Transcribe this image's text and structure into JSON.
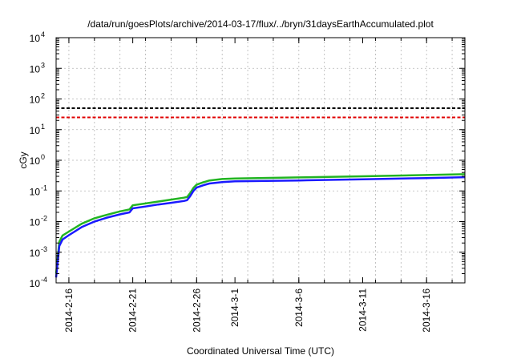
{
  "chart_data": {
    "type": "line",
    "title": "/data/run/goesPlots/archive/2014-03-17/flux/../bryn/31daysEarthAccumulated.plot",
    "xlabel": "Coordinated Universal Time (UTC)",
    "ylabel": "cGy",
    "y_scale": "log",
    "ylim": [
      0.0001,
      10000
    ],
    "xlim": [
      "2014-02-15",
      "2014-03-19"
    ],
    "grid": true,
    "x_ticks": [
      "2014-2-16",
      "2014-2-21",
      "2014-2-26",
      "2014-3-1",
      "2014-3-6",
      "2014-3-11",
      "2014-3-16"
    ],
    "x_tick_dates": [
      "2014-02-16",
      "2014-02-21",
      "2014-02-26",
      "2014-03-01",
      "2014-03-06",
      "2014-03-11",
      "2014-03-16"
    ],
    "y_ticks": [
      {
        "value": 0.0001,
        "base": "10",
        "exp": "-4"
      },
      {
        "value": 0.001,
        "base": "10",
        "exp": "-3"
      },
      {
        "value": 0.01,
        "base": "10",
        "exp": "-2"
      },
      {
        "value": 0.1,
        "base": "10",
        "exp": "-1"
      },
      {
        "value": 1,
        "base": "10",
        "exp": "0"
      },
      {
        "value": 10,
        "base": "10",
        "exp": "1"
      },
      {
        "value": 100,
        "base": "10",
        "exp": "2"
      },
      {
        "value": 1000,
        "base": "10",
        "exp": "3"
      },
      {
        "value": 10000,
        "base": "10",
        "exp": "4"
      }
    ],
    "reference_lines": [
      {
        "value": 50,
        "color": "#000000",
        "style": "dashed"
      },
      {
        "value": 25,
        "color": "#e00000",
        "style": "dashed"
      }
    ],
    "series": [
      {
        "color": "#22b422",
        "x": [
          "2014-02-15",
          "2014-02-15T06:00",
          "2014-02-15T12:00",
          "2014-02-16",
          "2014-02-17",
          "2014-02-18",
          "2014-02-19",
          "2014-02-20",
          "2014-02-20T18:00",
          "2014-02-21",
          "2014-02-22",
          "2014-02-23",
          "2014-02-24",
          "2014-02-25",
          "2014-02-25T06:00",
          "2014-02-25T12:00",
          "2014-02-25T18:00",
          "2014-02-26",
          "2014-02-26T12:00",
          "2014-02-27",
          "2014-02-28",
          "2014-03-01",
          "2014-03-06",
          "2014-03-11",
          "2014-03-16",
          "2014-03-19"
        ],
        "values": [
          0.0002,
          0.0022,
          0.0035,
          0.0047,
          0.0085,
          0.0128,
          0.0168,
          0.0215,
          0.025,
          0.034,
          0.039,
          0.045,
          0.052,
          0.06,
          0.063,
          0.085,
          0.125,
          0.16,
          0.19,
          0.22,
          0.245,
          0.255,
          0.275,
          0.3,
          0.33,
          0.35
        ]
      },
      {
        "color": "#1a1aff",
        "x": [
          "2014-02-15",
          "2014-02-15T06:00",
          "2014-02-15T12:00",
          "2014-02-16",
          "2014-02-17",
          "2014-02-18",
          "2014-02-19",
          "2014-02-20",
          "2014-02-20T18:00",
          "2014-02-21",
          "2014-02-22",
          "2014-02-23",
          "2014-02-24",
          "2014-02-25",
          "2014-02-25T06:00",
          "2014-02-25T12:00",
          "2014-02-25T18:00",
          "2014-02-26",
          "2014-02-26T12:00",
          "2014-02-27",
          "2014-02-28",
          "2014-03-01",
          "2014-03-06",
          "2014-03-11",
          "2014-03-16",
          "2014-03-19"
        ],
        "values": [
          0.00015,
          0.0016,
          0.0026,
          0.0036,
          0.0066,
          0.01,
          0.0135,
          0.0172,
          0.02,
          0.027,
          0.031,
          0.036,
          0.041,
          0.047,
          0.05,
          0.068,
          0.1,
          0.128,
          0.152,
          0.175,
          0.195,
          0.205,
          0.22,
          0.24,
          0.262,
          0.28
        ]
      }
    ]
  }
}
